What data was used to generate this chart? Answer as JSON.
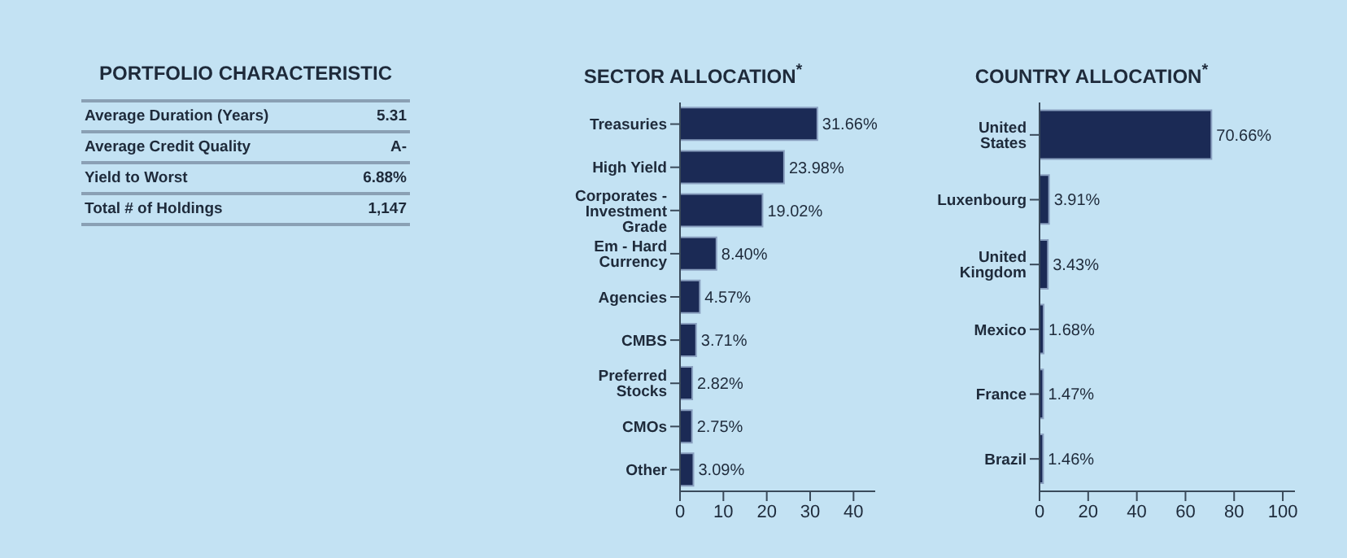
{
  "chart_data": [
    {
      "type": "other",
      "title": "PORTFOLIO CHARACTERISTIC",
      "annotations": [
        "Average Duration (Years)",
        "5.31",
        "Average Credit Quality",
        "A-",
        "Yield to Worst",
        "6.88%",
        "Total # of Holdings",
        "1,147"
      ]
    },
    {
      "type": "bar",
      "orientation": "horizontal",
      "title": "SECTOR ALLOCATION$^{*}$",
      "categories": [
        "Treasuries",
        "High Yield",
        "Corporates - Investment Grade",
        "Em - Hard Currency",
        "Agencies",
        "CMBS",
        "Preferred Stocks",
        "CMOs",
        "Other"
      ],
      "values": [
        31.66,
        23.98,
        19.02,
        8.4,
        4.57,
        3.71,
        2.82,
        2.75,
        3.09
      ],
      "value_labels": [
        "31.66%",
        "23.98%",
        "19.02%",
        "8.40%",
        "4.57%",
        "3.71%",
        "2.82%",
        "2.75%",
        "3.09%"
      ],
      "color": "#1b2a55",
      "xlim": [
        0,
        45
      ],
      "xticks": [
        0,
        10,
        20,
        30,
        40
      ]
    },
    {
      "type": "bar",
      "orientation": "horizontal",
      "title": "COUNTRY ALLOCATION$^{*}$",
      "categories": [
        "United States",
        "Luxenbourg",
        "United Kingdom",
        "Mexico",
        "France",
        "Brazil"
      ],
      "values": [
        70.66,
        3.91,
        3.43,
        1.68,
        1.47,
        1.46
      ],
      "value_labels": [
        "70.66%",
        "3.91%",
        "3.43%",
        "1.68%",
        "1.47%",
        "1.46%"
      ],
      "color": "#1b2a55",
      "xlim": [
        0,
        105
      ],
      "xticks": [
        0,
        20,
        40,
        60,
        80,
        100
      ]
    }
  ]
}
